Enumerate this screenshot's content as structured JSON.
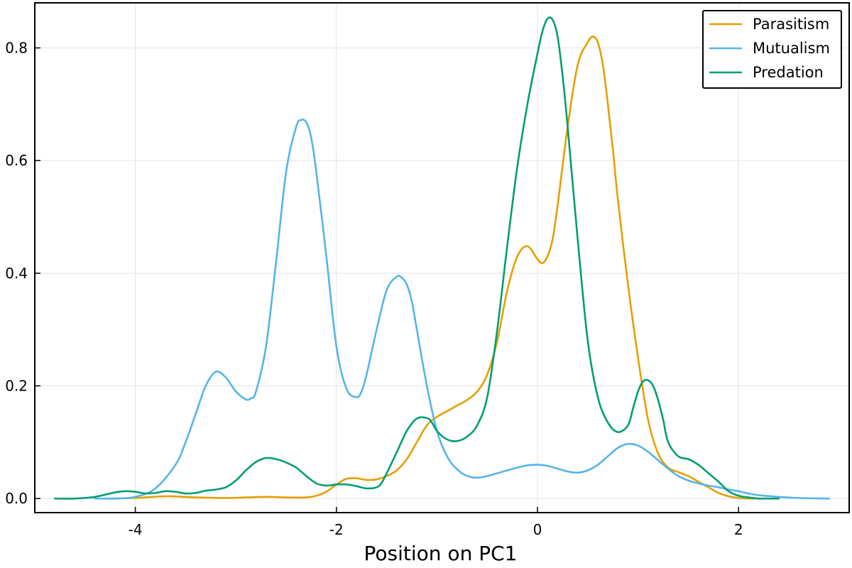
{
  "chart_data": {
    "type": "line",
    "title": "",
    "xlabel": "Position on PC1",
    "ylabel": "",
    "xlim": [
      -5.0,
      3.1
    ],
    "ylim": [
      -0.025,
      0.88
    ],
    "xticks": [
      -4,
      -2,
      0,
      2
    ],
    "yticks": [
      0.0,
      0.2,
      0.4,
      0.6,
      0.8
    ],
    "xtick_labels": [
      "-4",
      "-2",
      "0",
      "2"
    ],
    "ytick_labels": [
      "0.0",
      "0.2",
      "0.4",
      "0.6",
      "0.8"
    ],
    "grid": true,
    "legend_position": "top-right",
    "series": [
      {
        "name": "Parasitism",
        "color": "#E69F00",
        "x": [
          -4.3,
          -4.0,
          -3.7,
          -3.4,
          -3.1,
          -2.9,
          -2.7,
          -2.5,
          -2.3,
          -2.2,
          -2.1,
          -2.0,
          -1.9,
          -1.8,
          -1.7,
          -1.6,
          -1.5,
          -1.4,
          -1.3,
          -1.2,
          -1.1,
          -1.0,
          -0.9,
          -0.8,
          -0.7,
          -0.6,
          -0.5,
          -0.4,
          -0.3,
          -0.2,
          -0.1,
          0.0,
          0.05,
          0.1,
          0.15,
          0.2,
          0.3,
          0.4,
          0.5,
          0.55,
          0.6,
          0.65,
          0.7,
          0.75,
          0.8,
          0.9,
          1.0,
          1.1,
          1.2,
          1.3,
          1.4,
          1.5,
          1.6,
          1.7,
          1.8,
          1.9,
          2.0,
          2.1,
          2.2,
          2.3
        ],
        "y": [
          0.0,
          0.001,
          0.004,
          0.002,
          0.001,
          0.002,
          0.003,
          0.002,
          0.002,
          0.005,
          0.012,
          0.025,
          0.035,
          0.036,
          0.033,
          0.034,
          0.04,
          0.05,
          0.07,
          0.1,
          0.13,
          0.145,
          0.155,
          0.165,
          0.175,
          0.19,
          0.22,
          0.28,
          0.37,
          0.43,
          0.448,
          0.425,
          0.418,
          0.43,
          0.46,
          0.52,
          0.66,
          0.77,
          0.81,
          0.82,
          0.81,
          0.77,
          0.7,
          0.62,
          0.53,
          0.38,
          0.25,
          0.14,
          0.08,
          0.055,
          0.047,
          0.04,
          0.03,
          0.02,
          0.01,
          0.004,
          0.001,
          0.0,
          0.0,
          0.0
        ],
        "values_note": ""
      },
      {
        "name": "Mutualism",
        "color": "#56B4E9",
        "x": [
          -4.4,
          -4.2,
          -4.0,
          -3.8,
          -3.6,
          -3.5,
          -3.4,
          -3.3,
          -3.2,
          -3.1,
          -3.0,
          -2.9,
          -2.85,
          -2.8,
          -2.7,
          -2.6,
          -2.5,
          -2.4,
          -2.35,
          -2.3,
          -2.25,
          -2.2,
          -2.1,
          -2.0,
          -1.9,
          -1.8,
          -1.75,
          -1.7,
          -1.6,
          -1.5,
          -1.4,
          -1.35,
          -1.3,
          -1.25,
          -1.2,
          -1.1,
          -1.0,
          -0.9,
          -0.8,
          -0.7,
          -0.6,
          -0.5,
          -0.4,
          -0.3,
          -0.2,
          -0.1,
          0.0,
          0.1,
          0.2,
          0.3,
          0.4,
          0.5,
          0.6,
          0.7,
          0.8,
          0.9,
          1.0,
          1.1,
          1.2,
          1.3,
          1.4,
          1.5,
          1.6,
          1.7,
          1.8,
          1.9,
          2.0,
          2.1,
          2.2,
          2.4,
          2.6,
          2.9
        ],
        "y": [
          0.0,
          0.0,
          0.003,
          0.018,
          0.06,
          0.1,
          0.15,
          0.2,
          0.225,
          0.215,
          0.19,
          0.176,
          0.178,
          0.19,
          0.27,
          0.42,
          0.58,
          0.66,
          0.672,
          0.668,
          0.64,
          0.58,
          0.43,
          0.27,
          0.195,
          0.18,
          0.19,
          0.22,
          0.3,
          0.37,
          0.394,
          0.392,
          0.38,
          0.35,
          0.3,
          0.2,
          0.12,
          0.075,
          0.052,
          0.04,
          0.037,
          0.04,
          0.045,
          0.05,
          0.055,
          0.059,
          0.06,
          0.058,
          0.053,
          0.048,
          0.046,
          0.05,
          0.06,
          0.075,
          0.09,
          0.097,
          0.094,
          0.083,
          0.068,
          0.053,
          0.04,
          0.032,
          0.027,
          0.023,
          0.02,
          0.016,
          0.013,
          0.009,
          0.006,
          0.003,
          0.001,
          0.0
        ]
      },
      {
        "name": "Predation",
        "color": "#009E73",
        "x": [
          -4.8,
          -4.6,
          -4.4,
          -4.2,
          -4.1,
          -4.0,
          -3.9,
          -3.8,
          -3.7,
          -3.6,
          -3.5,
          -3.4,
          -3.3,
          -3.2,
          -3.1,
          -3.0,
          -2.9,
          -2.8,
          -2.7,
          -2.6,
          -2.5,
          -2.4,
          -2.3,
          -2.2,
          -2.1,
          -2.0,
          -1.9,
          -1.8,
          -1.7,
          -1.6,
          -1.55,
          -1.5,
          -1.4,
          -1.3,
          -1.2,
          -1.1,
          -1.05,
          -1.0,
          -0.9,
          -0.8,
          -0.7,
          -0.6,
          -0.5,
          -0.4,
          -0.3,
          -0.2,
          -0.1,
          0.0,
          0.05,
          0.1,
          0.15,
          0.2,
          0.25,
          0.3,
          0.4,
          0.5,
          0.6,
          0.7,
          0.8,
          0.9,
          0.95,
          1.0,
          1.05,
          1.1,
          1.15,
          1.2,
          1.25,
          1.3,
          1.4,
          1.5,
          1.6,
          1.7,
          1.8,
          1.9,
          2.0,
          2.1,
          2.2,
          2.3,
          2.4
        ],
        "y": [
          0.0,
          0.0,
          0.003,
          0.011,
          0.013,
          0.012,
          0.009,
          0.01,
          0.013,
          0.012,
          0.009,
          0.01,
          0.014,
          0.016,
          0.02,
          0.032,
          0.05,
          0.065,
          0.072,
          0.07,
          0.064,
          0.055,
          0.04,
          0.027,
          0.023,
          0.025,
          0.025,
          0.022,
          0.018,
          0.02,
          0.028,
          0.045,
          0.082,
          0.12,
          0.142,
          0.143,
          0.135,
          0.12,
          0.105,
          0.102,
          0.11,
          0.13,
          0.18,
          0.3,
          0.45,
          0.59,
          0.7,
          0.79,
          0.83,
          0.852,
          0.85,
          0.82,
          0.75,
          0.66,
          0.46,
          0.28,
          0.18,
          0.135,
          0.118,
          0.13,
          0.16,
          0.19,
          0.208,
          0.21,
          0.2,
          0.175,
          0.14,
          0.1,
          0.075,
          0.07,
          0.06,
          0.045,
          0.03,
          0.013,
          0.005,
          0.002,
          0.0,
          0.0,
          0.0
        ]
      }
    ]
  }
}
